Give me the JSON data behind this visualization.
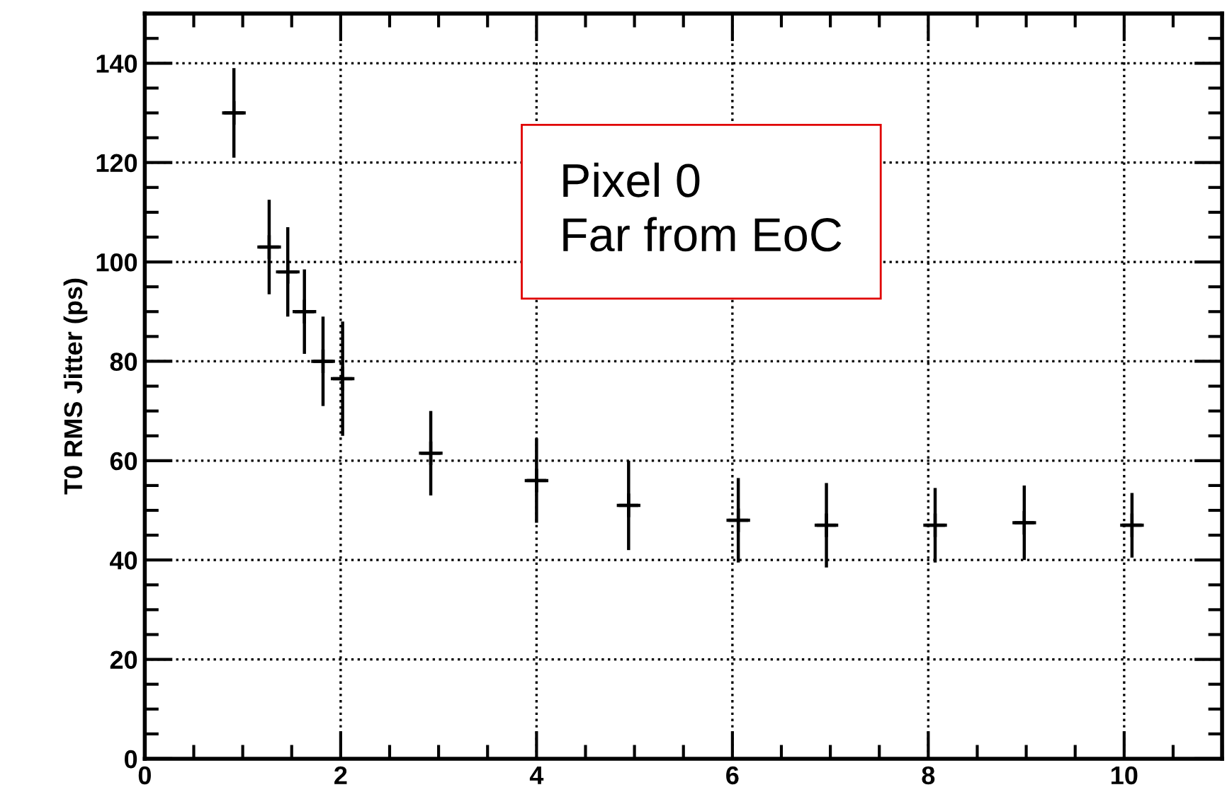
{
  "chart_data": {
    "type": "scatter",
    "ylabel": "T0 RMS Jitter (ps)",
    "x": [
      0.91,
      1.27,
      1.46,
      1.63,
      1.82,
      2.02,
      2.92,
      4.0,
      4.94,
      6.06,
      6.96,
      8.07,
      8.98,
      10.08
    ],
    "values": [
      130,
      103,
      98,
      90,
      80,
      76.5,
      61.5,
      56,
      51,
      48,
      47,
      47,
      47.5,
      47
    ],
    "errors": [
      9,
      9.5,
      9,
      8.5,
      9,
      11.5,
      8.5,
      8.5,
      9,
      8.5,
      8.5,
      7.5,
      7.5,
      6.5
    ],
    "xerrors": [
      0.1,
      0.1,
      0.1,
      0.1,
      0.1,
      0.1,
      0.1,
      0.1,
      0.1,
      0.1,
      0.1,
      0.1,
      0.1,
      0.1
    ],
    "color": "#000000",
    "marker": "cross",
    "xlim": [
      0,
      11
    ],
    "xticks": [
      0,
      2,
      4,
      6,
      8,
      10
    ],
    "ylim": [
      0,
      150
    ],
    "yticks": [
      0,
      20,
      40,
      60,
      80,
      100,
      120,
      140
    ],
    "grid": true,
    "annotations": [
      "Pixel 0\nFar from EoC"
    ]
  }
}
